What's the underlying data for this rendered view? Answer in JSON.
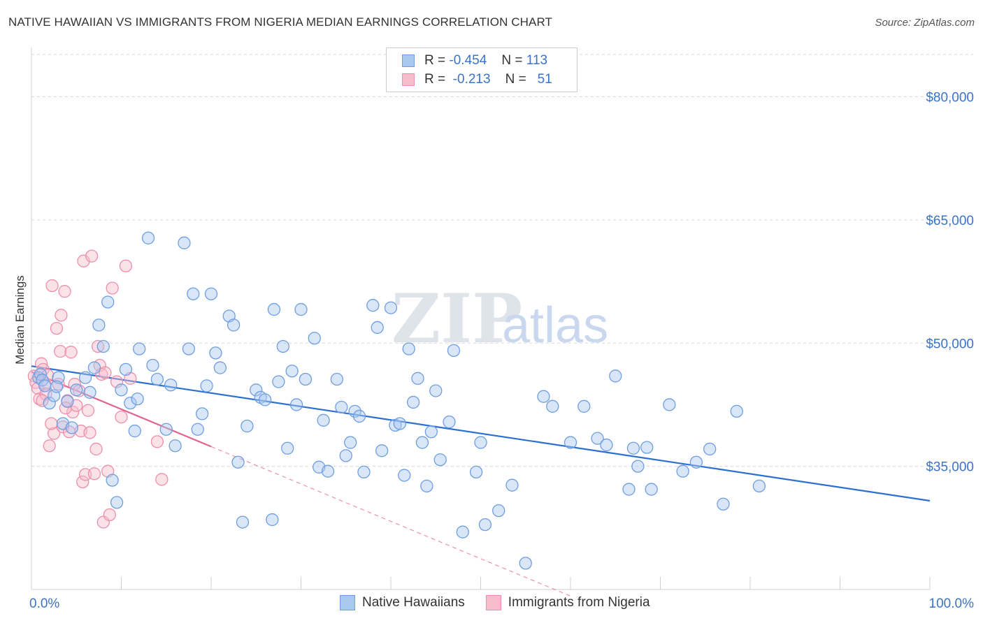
{
  "title": "NATIVE HAWAIIAN VS IMMIGRANTS FROM NIGERIA MEDIAN EARNINGS CORRELATION CHART",
  "source": "Source: ZipAtlas.com",
  "watermark": {
    "zip": "ZIP",
    "atlas": "atlas"
  },
  "legend": {
    "rows": [
      {
        "r_label": "R =",
        "r_value": "-0.454",
        "n_label": "N =",
        "n_value": "113"
      },
      {
        "r_label": "R =",
        "r_value": "-0.213",
        "n_label": "N =",
        "n_value": "51"
      }
    ]
  },
  "bottom_legend": [
    "Native Hawaiians",
    "Immigrants from Nigeria"
  ],
  "colors": {
    "blue_fill": "#a9c8f0",
    "blue_stroke": "#6f9ee0",
    "blue_line": "#2b6fd1",
    "pink_fill": "#f6bccd",
    "pink_stroke": "#ec8fab",
    "pink_line": "#e0648f",
    "grid": "#d8d8d8",
    "tick_label": "#3b73c9"
  },
  "chart_data": {
    "type": "scatter",
    "title": "NATIVE HAWAIIAN VS IMMIGRANTS FROM NIGERIA MEDIAN EARNINGS CORRELATION CHART",
    "xlabel": "",
    "ylabel": "Median Earnings",
    "xlim": [
      0,
      100
    ],
    "ylim": [
      20000,
      86000
    ],
    "x_tick_labels": [
      "0.0%",
      "100.0%"
    ],
    "y_ticks": [
      35000,
      50000,
      65000,
      80000
    ],
    "y_tick_labels": [
      "$35,000",
      "$50,000",
      "$65,000",
      "$80,000"
    ],
    "grid": true,
    "series": [
      {
        "name": "Native Hawaiians",
        "r": -0.454,
        "n": 113,
        "trend": {
          "x": [
            0,
            100
          ],
          "y": [
            47200,
            30800
          ],
          "style": "solid"
        },
        "points": [
          [
            0.8,
            45.8
          ],
          [
            1.0,
            46.2
          ],
          [
            1.2,
            45.5
          ],
          [
            1.5,
            44.8
          ],
          [
            2.0,
            42.7
          ],
          [
            3.0,
            45.8
          ],
          [
            2.5,
            43.6
          ],
          [
            3.5,
            40.2
          ],
          [
            4.0,
            42.9
          ],
          [
            5.0,
            44.3
          ],
          [
            6.0,
            45.8
          ],
          [
            7.0,
            47.0
          ],
          [
            7.5,
            52.2
          ],
          [
            8.0,
            49.6
          ],
          [
            8.5,
            55.0
          ],
          [
            9.0,
            33.3
          ],
          [
            10.0,
            44.3
          ],
          [
            10.5,
            46.8
          ],
          [
            11.0,
            42.7
          ],
          [
            11.5,
            39.3
          ],
          [
            12.0,
            49.3
          ],
          [
            13.0,
            62.8
          ],
          [
            13.5,
            47.3
          ],
          [
            14.0,
            45.6
          ],
          [
            15.0,
            39.5
          ],
          [
            16.0,
            37.5
          ],
          [
            17.0,
            62.2
          ],
          [
            17.5,
            49.3
          ],
          [
            18.0,
            56.0
          ],
          [
            19.0,
            41.4
          ],
          [
            19.5,
            44.8
          ],
          [
            20.0,
            56.0
          ],
          [
            20.5,
            48.8
          ],
          [
            21.0,
            47.0
          ],
          [
            22.0,
            53.3
          ],
          [
            22.5,
            52.2
          ],
          [
            23.0,
            35.5
          ],
          [
            24.0,
            39.9
          ],
          [
            25.0,
            44.3
          ],
          [
            25.5,
            43.4
          ],
          [
            26.0,
            43.1
          ],
          [
            27.0,
            54.1
          ],
          [
            27.5,
            45.3
          ],
          [
            28.0,
            49.6
          ],
          [
            28.5,
            37.2
          ],
          [
            29.0,
            46.6
          ],
          [
            29.5,
            42.5
          ],
          [
            30.0,
            54.1
          ],
          [
            30.5,
            45.6
          ],
          [
            31.5,
            50.6
          ],
          [
            32.0,
            34.9
          ],
          [
            32.5,
            40.6
          ],
          [
            33.0,
            34.4
          ],
          [
            34.0,
            45.6
          ],
          [
            34.5,
            42.2
          ],
          [
            35.0,
            36.3
          ],
          [
            36.0,
            41.7
          ],
          [
            36.5,
            41.1
          ],
          [
            37.0,
            34.3
          ],
          [
            38.0,
            54.6
          ],
          [
            38.5,
            51.9
          ],
          [
            39.0,
            36.9
          ],
          [
            40.0,
            54.3
          ],
          [
            40.5,
            40.0
          ],
          [
            41.0,
            40.2
          ],
          [
            41.5,
            33.9
          ],
          [
            42.0,
            49.3
          ],
          [
            42.5,
            42.8
          ],
          [
            43.0,
            45.7
          ],
          [
            43.5,
            37.9
          ],
          [
            44.0,
            32.6
          ],
          [
            44.5,
            39.2
          ],
          [
            45.0,
            44.2
          ],
          [
            45.5,
            35.8
          ],
          [
            46.5,
            40.4
          ],
          [
            47.0,
            49.1
          ],
          [
            48.0,
            27.0
          ],
          [
            49.5,
            34.3
          ],
          [
            50.5,
            27.9
          ],
          [
            52.0,
            29.6
          ],
          [
            53.5,
            32.7
          ],
          [
            55.0,
            23.2
          ],
          [
            57.0,
            43.5
          ],
          [
            58.0,
            42.3
          ],
          [
            60.0,
            37.9
          ],
          [
            61.5,
            42.3
          ],
          [
            63.0,
            38.4
          ],
          [
            64.0,
            37.6
          ],
          [
            65.0,
            46.0
          ],
          [
            66.5,
            32.2
          ],
          [
            67.0,
            37.2
          ],
          [
            67.5,
            35.0
          ],
          [
            68.5,
            37.3
          ],
          [
            69.0,
            32.2
          ],
          [
            71.0,
            42.5
          ],
          [
            72.5,
            34.4
          ],
          [
            74.0,
            35.5
          ],
          [
            75.5,
            37.1
          ],
          [
            77.0,
            30.4
          ],
          [
            78.5,
            41.7
          ],
          [
            81.0,
            32.6
          ],
          [
            23.5,
            28.2
          ],
          [
            26.8,
            28.5
          ],
          [
            9.5,
            30.6
          ],
          [
            18.5,
            39.5
          ],
          [
            35.5,
            37.9
          ],
          [
            15.5,
            44.9
          ],
          [
            6.5,
            44.0
          ],
          [
            2.8,
            44.7
          ],
          [
            4.5,
            39.7
          ],
          [
            11.8,
            43.2
          ],
          [
            50.0,
            37.9
          ]
        ]
      },
      {
        "name": "Immigrants from Nigeria",
        "r": -0.213,
        "n": 51,
        "trend_solid": {
          "x": [
            0,
            20
          ],
          "y": [
            46500,
            37400
          ]
        },
        "trend_dashed": {
          "x": [
            20,
            60
          ],
          "y": [
            37400,
            19200
          ]
        },
        "points": [
          [
            0.3,
            46.0
          ],
          [
            0.5,
            45.2
          ],
          [
            0.7,
            44.5
          ],
          [
            0.9,
            43.2
          ],
          [
            1.1,
            47.5
          ],
          [
            1.3,
            46.8
          ],
          [
            1.5,
            45.0
          ],
          [
            1.6,
            43.8
          ],
          [
            1.8,
            46.1
          ],
          [
            2.0,
            37.5
          ],
          [
            2.3,
            57.0
          ],
          [
            2.5,
            39.0
          ],
          [
            2.8,
            51.8
          ],
          [
            3.0,
            45.0
          ],
          [
            3.2,
            49.0
          ],
          [
            3.3,
            53.4
          ],
          [
            3.5,
            39.8
          ],
          [
            3.7,
            56.3
          ],
          [
            4.0,
            43.0
          ],
          [
            4.2,
            39.2
          ],
          [
            4.4,
            48.9
          ],
          [
            4.6,
            41.6
          ],
          [
            4.8,
            45.0
          ],
          [
            5.0,
            42.4
          ],
          [
            5.3,
            44.2
          ],
          [
            5.5,
            39.3
          ],
          [
            5.7,
            33.1
          ],
          [
            5.8,
            60.0
          ],
          [
            6.0,
            34.0
          ],
          [
            6.3,
            41.8
          ],
          [
            6.5,
            39.1
          ],
          [
            6.7,
            60.6
          ],
          [
            7.0,
            34.1
          ],
          [
            7.2,
            37.1
          ],
          [
            7.4,
            49.6
          ],
          [
            7.6,
            47.3
          ],
          [
            7.8,
            46.2
          ],
          [
            8.0,
            28.2
          ],
          [
            8.2,
            46.4
          ],
          [
            8.5,
            34.4
          ],
          [
            8.7,
            29.1
          ],
          [
            9.0,
            56.7
          ],
          [
            9.5,
            45.3
          ],
          [
            10.0,
            41.0
          ],
          [
            10.5,
            59.4
          ],
          [
            11.0,
            45.7
          ],
          [
            14.0,
            38.0
          ],
          [
            14.5,
            33.4
          ],
          [
            1.2,
            43.0
          ],
          [
            2.2,
            40.2
          ],
          [
            3.8,
            42.1
          ]
        ]
      }
    ]
  }
}
